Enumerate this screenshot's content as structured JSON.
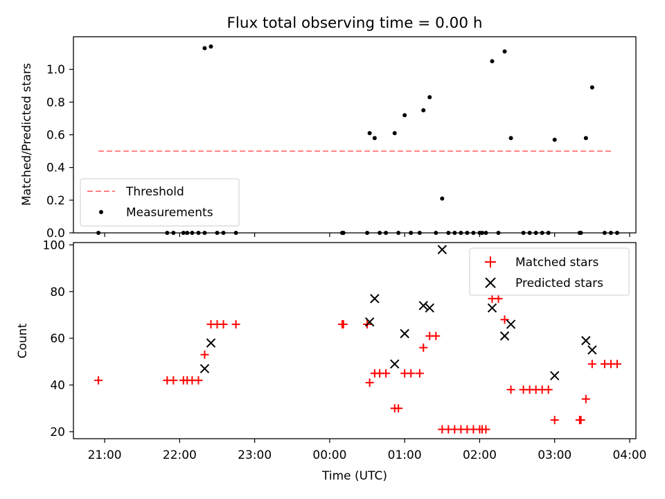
{
  "chart_data": [
    {
      "type": "scatter",
      "title": "Flux total observing time = 0.00 h",
      "xlabel": "",
      "ylabel": "Matched/Predicted stars",
      "xlim": [
        "20:35",
        "04:05"
      ],
      "ylim": [
        0,
        1.2
      ],
      "yticks": [
        0.0,
        0.2,
        0.4,
        0.6,
        0.8,
        1.0
      ],
      "ytick_labels": [
        "0.0",
        "0.2",
        "0.4",
        "0.6",
        "0.8",
        "1.0"
      ],
      "legend_position": "lower-left",
      "grid": false,
      "series": [
        {
          "name": "Threshold",
          "kind": "line",
          "style": "dashed",
          "color": "#ff7f7f",
          "points": [
            {
              "x": "20:55",
              "y": 0.5
            },
            {
              "x": "03:45",
              "y": 0.5
            }
          ]
        },
        {
          "name": "Measurements",
          "kind": "scatter",
          "marker": "dot",
          "color": "#000000",
          "points": [
            {
              "x": "20:55",
              "y": 0.0
            },
            {
              "x": "21:50",
              "y": 0.0
            },
            {
              "x": "21:55",
              "y": 0.0
            },
            {
              "x": "22:03",
              "y": 0.0
            },
            {
              "x": "22:06",
              "y": 0.0
            },
            {
              "x": "22:10",
              "y": 0.0
            },
            {
              "x": "22:15",
              "y": 0.0
            },
            {
              "x": "22:20",
              "y": 0.0
            },
            {
              "x": "22:20",
              "y": 1.13
            },
            {
              "x": "22:25",
              "y": 1.14
            },
            {
              "x": "22:30",
              "y": 0.0
            },
            {
              "x": "22:35",
              "y": 0.0
            },
            {
              "x": "22:45",
              "y": 0.0
            },
            {
              "x": "00:10",
              "y": 0.0
            },
            {
              "x": "00:11",
              "y": 0.0
            },
            {
              "x": "00:30",
              "y": 0.0
            },
            {
              "x": "00:32",
              "y": 0.61
            },
            {
              "x": "00:36",
              "y": 0.58
            },
            {
              "x": "00:40",
              "y": 0.0
            },
            {
              "x": "00:45",
              "y": 0.0
            },
            {
              "x": "00:52",
              "y": 0.61
            },
            {
              "x": "00:55",
              "y": 0.0
            },
            {
              "x": "01:00",
              "y": 0.72
            },
            {
              "x": "01:05",
              "y": 0.0
            },
            {
              "x": "01:12",
              "y": 0.0
            },
            {
              "x": "01:15",
              "y": 0.75
            },
            {
              "x": "01:20",
              "y": 0.83
            },
            {
              "x": "01:25",
              "y": 0.0
            },
            {
              "x": "01:30",
              "y": 0.21
            },
            {
              "x": "01:35",
              "y": 0.0
            },
            {
              "x": "01:40",
              "y": 0.0
            },
            {
              "x": "01:45",
              "y": 0.0
            },
            {
              "x": "01:50",
              "y": 0.0
            },
            {
              "x": "01:55",
              "y": 0.0
            },
            {
              "x": "02:00",
              "y": 0.0
            },
            {
              "x": "02:02",
              "y": 0.0
            },
            {
              "x": "02:05",
              "y": 0.0
            },
            {
              "x": "02:10",
              "y": 1.05
            },
            {
              "x": "02:15",
              "y": 0.0
            },
            {
              "x": "02:20",
              "y": 1.11
            },
            {
              "x": "02:25",
              "y": 0.58
            },
            {
              "x": "02:35",
              "y": 0.0
            },
            {
              "x": "02:40",
              "y": 0.0
            },
            {
              "x": "02:45",
              "y": 0.0
            },
            {
              "x": "02:50",
              "y": 0.0
            },
            {
              "x": "02:55",
              "y": 0.0
            },
            {
              "x": "03:00",
              "y": 0.57
            },
            {
              "x": "03:20",
              "y": 0.0
            },
            {
              "x": "03:21",
              "y": 0.0
            },
            {
              "x": "03:25",
              "y": 0.58
            },
            {
              "x": "03:30",
              "y": 0.89
            },
            {
              "x": "03:40",
              "y": 0.0
            },
            {
              "x": "03:45",
              "y": 0.0
            },
            {
              "x": "03:50",
              "y": 0.0
            }
          ]
        }
      ]
    },
    {
      "type": "scatter",
      "title": "",
      "xlabel": "Time (UTC)",
      "ylabel": "Count",
      "xlim": [
        "20:35",
        "04:05"
      ],
      "ylim": [
        17,
        101
      ],
      "xticks": [
        "21:00",
        "22:00",
        "23:00",
        "00:00",
        "01:00",
        "02:00",
        "03:00",
        "04:00"
      ],
      "yticks": [
        20,
        40,
        60,
        80,
        100
      ],
      "ytick_labels": [
        "20",
        "40",
        "60",
        "80",
        "100"
      ],
      "legend_position": "upper-right",
      "grid": false,
      "series": [
        {
          "name": "Matched stars",
          "kind": "scatter",
          "marker": "plus",
          "color": "#ff0000",
          "points": [
            {
              "x": "20:55",
              "y": 42
            },
            {
              "x": "21:50",
              "y": 42
            },
            {
              "x": "21:55",
              "y": 42
            },
            {
              "x": "22:03",
              "y": 42
            },
            {
              "x": "22:06",
              "y": 42
            },
            {
              "x": "22:10",
              "y": 42
            },
            {
              "x": "22:15",
              "y": 42
            },
            {
              "x": "22:20",
              "y": 53
            },
            {
              "x": "22:25",
              "y": 66
            },
            {
              "x": "22:30",
              "y": 66
            },
            {
              "x": "22:35",
              "y": 66
            },
            {
              "x": "22:45",
              "y": 66
            },
            {
              "x": "00:10",
              "y": 66
            },
            {
              "x": "00:11",
              "y": 66
            },
            {
              "x": "00:30",
              "y": 66
            },
            {
              "x": "00:32",
              "y": 41
            },
            {
              "x": "00:36",
              "y": 45
            },
            {
              "x": "00:40",
              "y": 45
            },
            {
              "x": "00:45",
              "y": 45
            },
            {
              "x": "00:52",
              "y": 30
            },
            {
              "x": "00:55",
              "y": 30
            },
            {
              "x": "01:00",
              "y": 45
            },
            {
              "x": "01:05",
              "y": 45
            },
            {
              "x": "01:12",
              "y": 45
            },
            {
              "x": "01:15",
              "y": 56
            },
            {
              "x": "01:20",
              "y": 61
            },
            {
              "x": "01:25",
              "y": 61
            },
            {
              "x": "01:30",
              "y": 21
            },
            {
              "x": "01:35",
              "y": 21
            },
            {
              "x": "01:40",
              "y": 21
            },
            {
              "x": "01:45",
              "y": 21
            },
            {
              "x": "01:50",
              "y": 21
            },
            {
              "x": "01:55",
              "y": 21
            },
            {
              "x": "02:00",
              "y": 21
            },
            {
              "x": "02:02",
              "y": 21
            },
            {
              "x": "02:05",
              "y": 21
            },
            {
              "x": "02:10",
              "y": 77
            },
            {
              "x": "02:15",
              "y": 77
            },
            {
              "x": "02:20",
              "y": 68
            },
            {
              "x": "02:25",
              "y": 38
            },
            {
              "x": "02:35",
              "y": 38
            },
            {
              "x": "02:40",
              "y": 38
            },
            {
              "x": "02:45",
              "y": 38
            },
            {
              "x": "02:50",
              "y": 38
            },
            {
              "x": "02:55",
              "y": 38
            },
            {
              "x": "03:00",
              "y": 25
            },
            {
              "x": "03:20",
              "y": 25
            },
            {
              "x": "03:21",
              "y": 25
            },
            {
              "x": "03:25",
              "y": 34
            },
            {
              "x": "03:30",
              "y": 49
            },
            {
              "x": "03:40",
              "y": 49
            },
            {
              "x": "03:45",
              "y": 49
            },
            {
              "x": "03:50",
              "y": 49
            }
          ]
        },
        {
          "name": "Predicted stars",
          "kind": "scatter",
          "marker": "x",
          "color": "#000000",
          "points": [
            {
              "x": "22:20",
              "y": 47
            },
            {
              "x": "22:25",
              "y": 58
            },
            {
              "x": "00:32",
              "y": 67
            },
            {
              "x": "00:36",
              "y": 77
            },
            {
              "x": "00:52",
              "y": 49
            },
            {
              "x": "01:00",
              "y": 62
            },
            {
              "x": "01:15",
              "y": 74
            },
            {
              "x": "01:20",
              "y": 73
            },
            {
              "x": "01:30",
              "y": 98
            },
            {
              "x": "02:10",
              "y": 73
            },
            {
              "x": "02:20",
              "y": 61
            },
            {
              "x": "02:25",
              "y": 66
            },
            {
              "x": "03:00",
              "y": 44
            },
            {
              "x": "03:25",
              "y": 59
            },
            {
              "x": "03:30",
              "y": 55
            }
          ]
        }
      ]
    }
  ]
}
